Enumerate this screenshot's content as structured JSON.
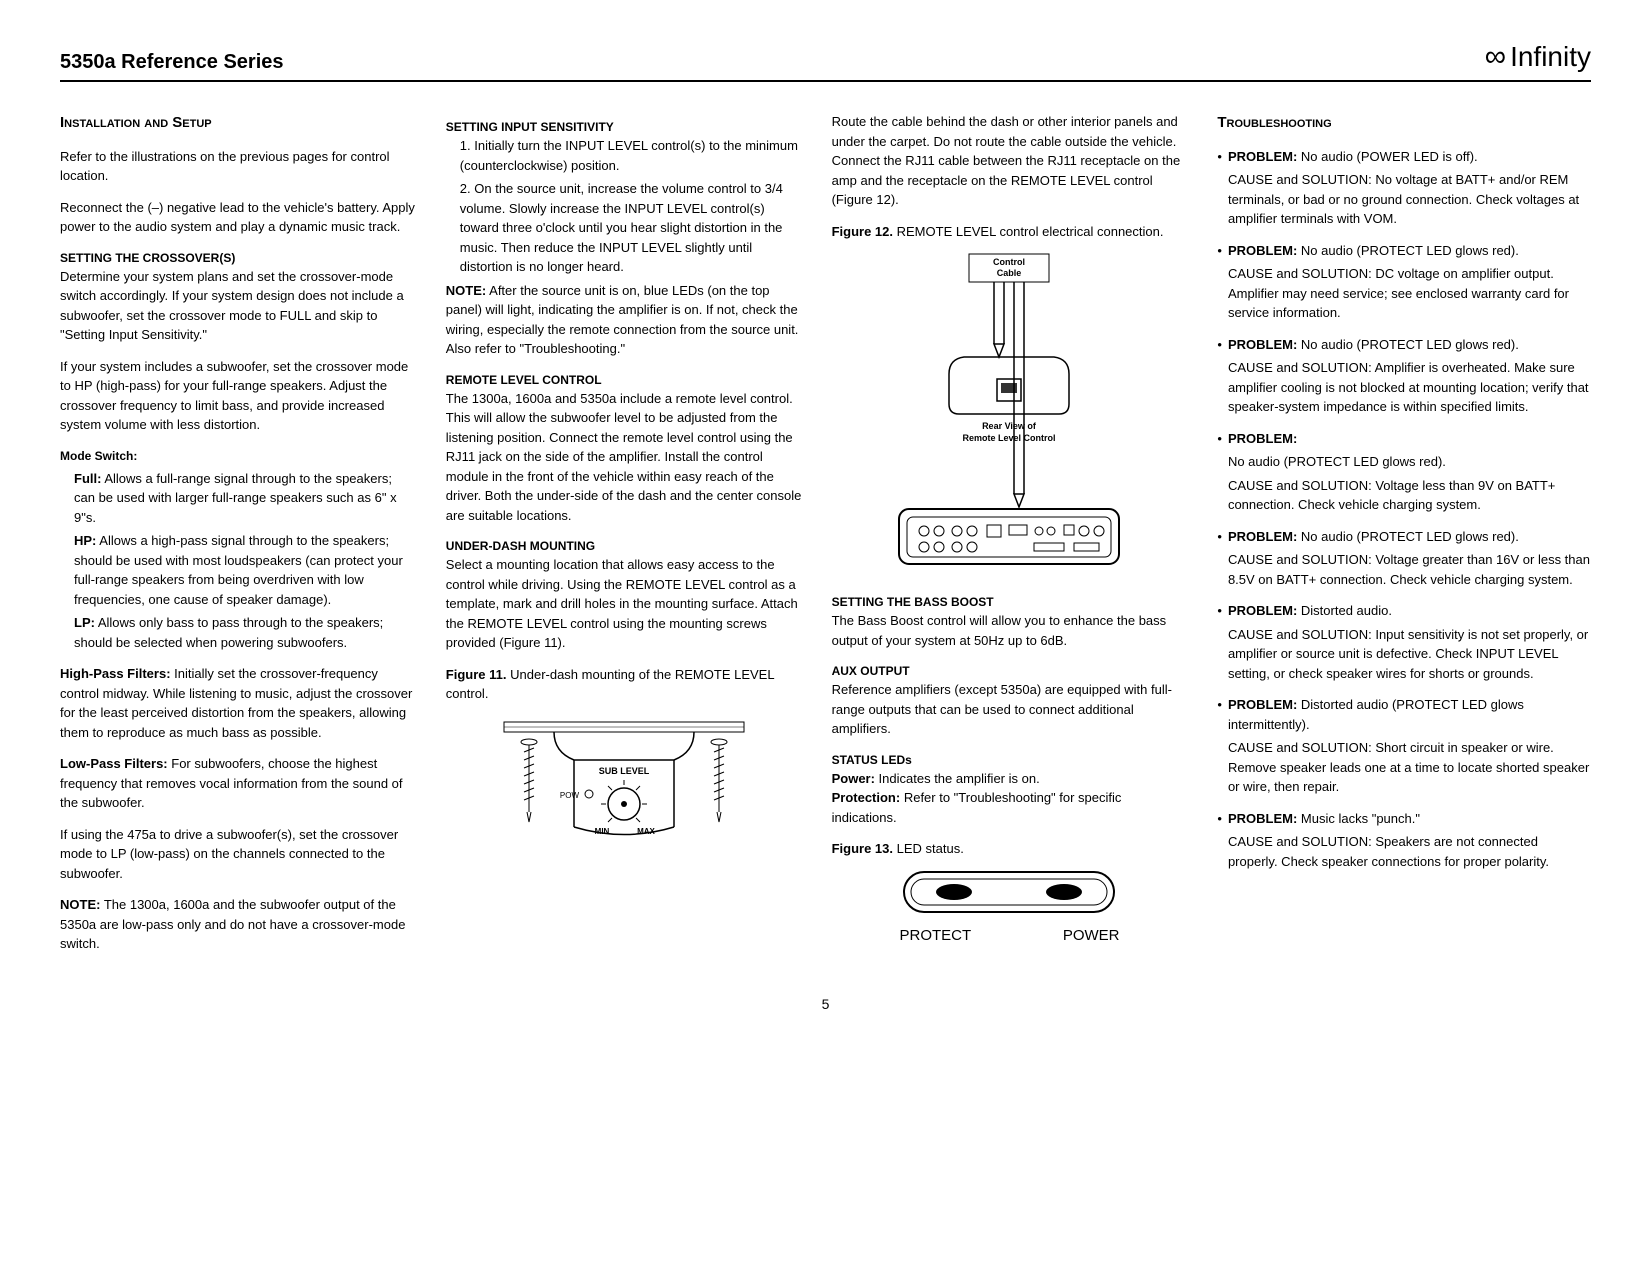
{
  "header": {
    "title": "5350a Reference Series",
    "brand": "Infinity"
  },
  "col1": {
    "heading": "Installation and Setup",
    "p1": "Refer to the illustrations on the previous pages for control location.",
    "p2": "Reconnect the (–) negative lead to the vehicle's battery. Apply power to the audio system and play a dynamic music track.",
    "sub1": "SETTING THE CROSSOVER(S)",
    "p3": "Determine your system plans and set the crossover-mode switch accordingly. If your system design does not include a subwoofer, set the crossover mode to FULL and skip to \"Setting Input Sensitivity.\"",
    "p4": "If your system includes a subwoofer, set the crossover mode to HP (high-pass) for your full-range speakers. Adjust the crossover frequency to limit bass, and provide increased system volume with less distortion.",
    "mode_label": "Mode Switch:",
    "mode_full_label": "Full:",
    "mode_full": " Allows a full-range signal through to the speakers; can be used with larger full-range speakers such as 6\" x 9\"s.",
    "mode_hp_label": "HP:",
    "mode_hp": " Allows a high-pass signal through to the speakers; should be used with most loudspeakers (can protect your full-range speakers from being overdriven with low frequencies, one cause of speaker damage).",
    "mode_lp_label": "LP:",
    "mode_lp": " Allows only bass to pass through to the speakers; should be selected when powering subwoofers.",
    "hp_label": "High-Pass Filters:",
    "hp_text": " Initially set the crossover-frequency control midway. While listening to music, adjust the crossover for the least perceived distortion from the speakers, allowing them to reproduce as much bass as possible.",
    "lp_label": "Low-Pass Filters:",
    "lp_text": " For subwoofers, choose the highest frequency that removes vocal information from the sound of the subwoofer.",
    "p5": "If using the 475a to drive a subwoofer(s), set the crossover mode to LP (low-pass) on the channels connected to the subwoofer.",
    "note_label": "NOTE:",
    "note1": " The 1300a, 1600a and the subwoofer output of the 5350a are low-pass only and do not have a crossover-mode switch."
  },
  "col2": {
    "sub1": "SETTING INPUT SENSITIVITY",
    "li1": "1. Initially turn the INPUT LEVEL control(s) to the minimum (counterclockwise) position.",
    "li2": "2. On the source unit, increase the volume control to 3/4 volume. Slowly increase the INPUT LEVEL control(s) toward three o'clock until you hear slight distortion in the music. Then reduce the INPUT LEVEL slightly until distortion is no longer heard.",
    "note_label": "NOTE:",
    "note1": " After the source unit is on, blue LEDs (on the top panel) will light, indicating the amplifier is on. If not, check the wiring, especially the remote connection from the source unit. Also refer to \"Troubleshooting.\"",
    "sub2": "REMOTE LEVEL CONTROL",
    "p1": "The 1300a, 1600a and 5350a include a remote level control. This will allow the subwoofer level to be adjusted from the listening position. Connect the remote level control using the RJ11 jack on the side of the amplifier. Install the control module in the front of the vehicle within easy reach of the driver. Both the under-side of the dash and the center console are suitable locations.",
    "sub3": "UNDER-DASH MOUNTING",
    "p2": "Select a mounting location that allows easy access to the control while driving. Using the REMOTE LEVEL control as a template, mark and drill holes in the mounting surface. Attach the REMOTE LEVEL control using the mounting screws provided (Figure 11).",
    "fig11_label": "Figure 11.",
    "fig11_text": " Under-dash mounting of the REMOTE LEVEL control.",
    "fig11_sublevel": "SUB LEVEL",
    "fig11_pow": "POW",
    "fig11_min": "MIN",
    "fig11_max": "MAX"
  },
  "col3": {
    "p1": "Route the cable behind the dash or other interior panels and under the carpet. Do not route the cable outside the vehicle. Connect the RJ11 cable between the RJ11 receptacle on the amp and the receptacle on the REMOTE LEVEL control (Figure 12).",
    "fig12_label": "Figure 12.",
    "fig12_text": " REMOTE LEVEL control electrical connection.",
    "fig12_ctrl_cable": "Control Cable",
    "fig12_rear_view": "Rear View of Remote Level Control",
    "sub1": "SETTING THE BASS BOOST",
    "p2": "The Bass Boost control will allow you to enhance the bass output of your system at 50Hz up to 6dB.",
    "sub2": "AUX OUTPUT",
    "p3": "Reference amplifiers (except 5350a) are equipped with full-range outputs that can be used to connect additional amplifiers.",
    "sub3": "STATUS LEDs",
    "power_label": "Power:",
    "power_text": " Indicates the amplifier is on.",
    "protect_label": "Protection:",
    "protect_text": " Refer to \"Troubleshooting\" for specific indications.",
    "fig13_label": "Figure 13.",
    "fig13_text": " LED status.",
    "led_protect": "PROTECT",
    "led_power": "POWER"
  },
  "col4": {
    "heading": "Troubleshooting",
    "items": [
      {
        "prob_label": "PROBLEM:",
        "prob": " No audio (POWER LED is off).",
        "sol": "CAUSE and SOLUTION: No voltage at BATT+ and/or REM terminals, or bad or no ground connection. Check voltages at amplifier terminals with VOM."
      },
      {
        "prob_label": "PROBLEM:",
        "prob": " No audio (PROTECT LED glows red).",
        "sol": "CAUSE and SOLUTION: DC voltage on amplifier output. Amplifier may need service; see enclosed warranty card for service information."
      },
      {
        "prob_label": "PROBLEM:",
        "prob": " No audio (PROTECT LED glows red).",
        "sol": "CAUSE and SOLUTION: Amplifier is overheated. Make sure amplifier cooling is not blocked at mounting location; verify that speaker-system impedance is within specified limits."
      },
      {
        "prob_label": "PROBLEM:",
        "prob": "",
        "prob_line2": "No audio (PROTECT LED glows red).",
        "sol": "CAUSE and SOLUTION: Voltage less than 9V on BATT+ connection. Check vehicle charging system."
      },
      {
        "prob_label": "PROBLEM:",
        "prob": " No audio (PROTECT LED glows red).",
        "sol": "CAUSE and SOLUTION: Voltage greater than 16V or less than 8.5V on BATT+ connection. Check vehicle charging system."
      },
      {
        "prob_label": "PROBLEM:",
        "prob": " Distorted audio.",
        "sol": "CAUSE and SOLUTION: Input sensitivity is not set properly, or amplifier or source unit is defective. Check INPUT LEVEL setting, or check speaker wires for shorts or grounds."
      },
      {
        "prob_label": "PROBLEM:",
        "prob": " Distorted audio (PROTECT LED glows intermittently).",
        "sol": "CAUSE and SOLUTION: Short circuit in speaker or wire. Remove speaker leads one at a time to locate shorted speaker or wire, then repair."
      },
      {
        "prob_label": "PROBLEM:",
        "prob": " Music lacks \"punch.\"",
        "sol": "CAUSE and SOLUTION: Speakers are not connected properly. Check speaker connections for proper polarity."
      }
    ]
  },
  "page_num": "5"
}
